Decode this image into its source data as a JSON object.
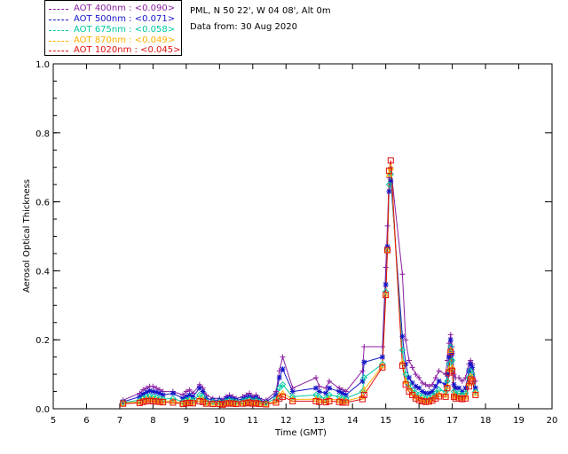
{
  "header": {
    "station": "PML, N 50 22', W 04 08', Alt 0m",
    "date_line": "Data from: 30 Aug 2020"
  },
  "chart_data": {
    "type": "scatter",
    "title": "",
    "xlabel": "Time (GMT)",
    "ylabel": "Aerosol Optical Thickness",
    "xlim": [
      5,
      20
    ],
    "ylim": [
      0,
      1.0
    ],
    "xticks": [
      5,
      6,
      7,
      8,
      9,
      10,
      11,
      12,
      13,
      14,
      15,
      16,
      17,
      18,
      19,
      20
    ],
    "yticks": [
      0.0,
      0.2,
      0.4,
      0.6,
      0.8,
      1.0
    ],
    "ytick_labels": [
      "0.0",
      "0.2",
      "0.4",
      "0.6",
      "0.8",
      "1.0"
    ],
    "legend_position": "top-left, outside plot",
    "x": [
      7.1,
      7.6,
      7.7,
      7.8,
      7.9,
      8.0,
      8.1,
      8.2,
      8.3,
      8.6,
      8.9,
      9.0,
      9.1,
      9.2,
      9.4,
      9.5,
      9.6,
      9.8,
      10.0,
      10.1,
      10.2,
      10.3,
      10.4,
      10.5,
      10.7,
      10.8,
      10.9,
      11.0,
      11.1,
      11.2,
      11.4,
      11.7,
      11.8,
      11.9,
      12.2,
      12.9,
      13.0,
      13.2,
      13.3,
      13.6,
      13.7,
      13.8,
      14.3,
      14.35,
      14.9,
      15.0,
      15.05,
      15.1,
      15.15,
      15.5,
      15.6,
      15.7,
      15.8,
      15.9,
      16.0,
      16.1,
      16.2,
      16.3,
      16.4,
      16.5,
      16.6,
      16.8,
      16.85,
      16.9,
      16.95,
      17.0,
      17.05,
      17.1,
      17.2,
      17.3,
      17.4,
      17.5,
      17.55,
      17.6,
      17.7
    ],
    "series": [
      {
        "name": "AOT  400nm",
        "legend_label": "AOT  400nm : <0.090>",
        "color": "#8b1fa0",
        "marker": "plus",
        "values": [
          0.025,
          0.045,
          0.055,
          0.06,
          0.065,
          0.065,
          0.06,
          0.055,
          0.05,
          0.05,
          0.04,
          0.05,
          0.055,
          0.045,
          0.07,
          0.06,
          0.04,
          0.03,
          0.03,
          0.025,
          0.035,
          0.04,
          0.035,
          0.03,
          0.035,
          0.04,
          0.045,
          0.035,
          0.04,
          0.03,
          0.025,
          0.05,
          0.11,
          0.15,
          0.06,
          0.09,
          0.065,
          0.06,
          0.08,
          0.06,
          0.055,
          0.05,
          0.11,
          0.18,
          0.18,
          0.41,
          0.53,
          0.67,
          0.7,
          0.39,
          0.2,
          0.14,
          0.12,
          0.1,
          0.09,
          0.075,
          0.07,
          0.065,
          0.07,
          0.09,
          0.11,
          0.1,
          0.14,
          0.19,
          0.215,
          0.18,
          0.1,
          0.09,
          0.09,
          0.08,
          0.09,
          0.13,
          0.14,
          0.13,
          0.08
        ]
      },
      {
        "name": "AOT  500nm",
        "legend_label": "AOT  500nm : <0.071>",
        "color": "#1515c8",
        "marker": "star",
        "values": [
          0.02,
          0.035,
          0.042,
          0.048,
          0.052,
          0.05,
          0.048,
          0.045,
          0.04,
          0.045,
          0.03,
          0.035,
          0.04,
          0.035,
          0.06,
          0.05,
          0.03,
          0.025,
          0.025,
          0.02,
          0.03,
          0.032,
          0.028,
          0.025,
          0.028,
          0.032,
          0.035,
          0.028,
          0.032,
          0.025,
          0.02,
          0.04,
          0.09,
          0.115,
          0.05,
          0.06,
          0.05,
          0.045,
          0.06,
          0.05,
          0.045,
          0.04,
          0.08,
          0.135,
          0.15,
          0.36,
          0.47,
          0.63,
          0.66,
          0.21,
          0.13,
          0.09,
          0.075,
          0.065,
          0.06,
          0.05,
          0.045,
          0.045,
          0.05,
          0.065,
          0.08,
          0.07,
          0.1,
          0.15,
          0.2,
          0.16,
          0.07,
          0.06,
          0.06,
          0.05,
          0.06,
          0.11,
          0.13,
          0.12,
          0.06
        ]
      },
      {
        "name": "AOT  675nm",
        "legend_label": "AOT  675nm : <0.058>",
        "color": "#00c8a0",
        "marker": "diamond",
        "values": [
          0.018,
          0.025,
          0.03,
          0.035,
          0.037,
          0.035,
          0.033,
          0.03,
          0.028,
          0.03,
          0.02,
          0.025,
          0.028,
          0.025,
          0.04,
          0.035,
          0.022,
          0.02,
          0.02,
          0.016,
          0.022,
          0.025,
          0.022,
          0.02,
          0.022,
          0.025,
          0.027,
          0.022,
          0.025,
          0.02,
          0.017,
          0.03,
          0.06,
          0.07,
          0.035,
          0.04,
          0.035,
          0.03,
          0.04,
          0.035,
          0.03,
          0.03,
          0.05,
          0.09,
          0.13,
          0.34,
          0.46,
          0.65,
          0.68,
          0.17,
          0.1,
          0.07,
          0.055,
          0.045,
          0.04,
          0.035,
          0.03,
          0.032,
          0.035,
          0.045,
          0.055,
          0.05,
          0.08,
          0.13,
          0.18,
          0.14,
          0.05,
          0.045,
          0.045,
          0.04,
          0.045,
          0.09,
          0.11,
          0.1,
          0.05
        ]
      },
      {
        "name": "AOT  870nm",
        "legend_label": "AOT  870nm : <0.049>",
        "color": "#ffb000",
        "marker": "triangle",
        "values": [
          0.016,
          0.02,
          0.024,
          0.027,
          0.028,
          0.027,
          0.025,
          0.023,
          0.022,
          0.022,
          0.016,
          0.019,
          0.021,
          0.019,
          0.028,
          0.025,
          0.017,
          0.016,
          0.016,
          0.013,
          0.017,
          0.019,
          0.017,
          0.016,
          0.017,
          0.019,
          0.021,
          0.017,
          0.019,
          0.016,
          0.014,
          0.022,
          0.04,
          0.045,
          0.027,
          0.028,
          0.025,
          0.023,
          0.028,
          0.025,
          0.022,
          0.022,
          0.035,
          0.055,
          0.125,
          0.33,
          0.46,
          0.68,
          0.7,
          0.135,
          0.08,
          0.06,
          0.045,
          0.035,
          0.03,
          0.027,
          0.024,
          0.025,
          0.028,
          0.035,
          0.042,
          0.04,
          0.065,
          0.115,
          0.17,
          0.12,
          0.04,
          0.035,
          0.035,
          0.032,
          0.035,
          0.075,
          0.095,
          0.09,
          0.045
        ]
      },
      {
        "name": "AOT 1020nm",
        "legend_label": "AOT 1020nm : <0.045>",
        "color": "#e01010",
        "marker": "square",
        "values": [
          0.015,
          0.017,
          0.02,
          0.022,
          0.023,
          0.022,
          0.021,
          0.02,
          0.019,
          0.018,
          0.014,
          0.016,
          0.017,
          0.016,
          0.022,
          0.02,
          0.015,
          0.014,
          0.014,
          0.012,
          0.015,
          0.016,
          0.015,
          0.014,
          0.015,
          0.016,
          0.018,
          0.015,
          0.016,
          0.014,
          0.013,
          0.018,
          0.03,
          0.035,
          0.022,
          0.022,
          0.02,
          0.019,
          0.022,
          0.02,
          0.018,
          0.018,
          0.028,
          0.04,
          0.12,
          0.33,
          0.46,
          0.69,
          0.72,
          0.125,
          0.07,
          0.05,
          0.04,
          0.03,
          0.025,
          0.022,
          0.02,
          0.021,
          0.024,
          0.03,
          0.036,
          0.035,
          0.06,
          0.105,
          0.165,
          0.11,
          0.035,
          0.03,
          0.03,
          0.028,
          0.03,
          0.065,
          0.085,
          0.08,
          0.04
        ]
      }
    ]
  }
}
